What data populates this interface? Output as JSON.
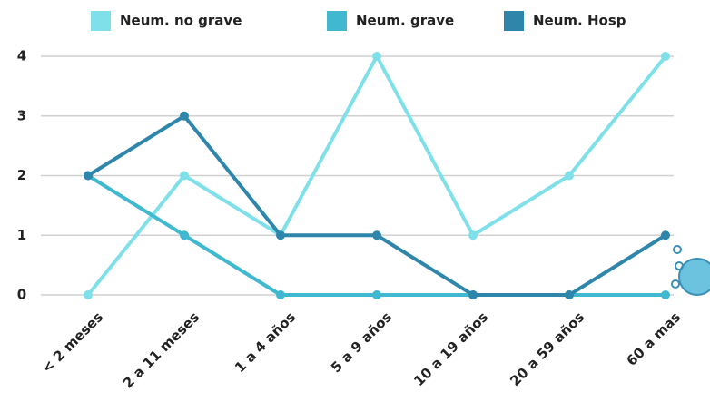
{
  "chart_data": {
    "type": "line",
    "categories": [
      "< 2 meses",
      "2 a 11 meses",
      "1 a 4 años",
      "5 a 9 años",
      "10 a 19 años",
      "20 a 59 años",
      "60 a mas"
    ],
    "series": [
      {
        "name": "Neum. no grave",
        "color": "#7fe0ea",
        "values": [
          0,
          2,
          1,
          4,
          1,
          2,
          4
        ]
      },
      {
        "name": "Neum. grave",
        "color": "#3fb8d0",
        "values": [
          2,
          1,
          0,
          0,
          0,
          0,
          0
        ]
      },
      {
        "name": "Neum. Hosp",
        "color": "#2e86ab",
        "values": [
          2,
          3,
          1,
          1,
          0,
          0,
          1
        ]
      }
    ],
    "ylim": [
      0,
      4
    ],
    "yticks": [
      0,
      1,
      2,
      3,
      4
    ],
    "grid": true
  }
}
